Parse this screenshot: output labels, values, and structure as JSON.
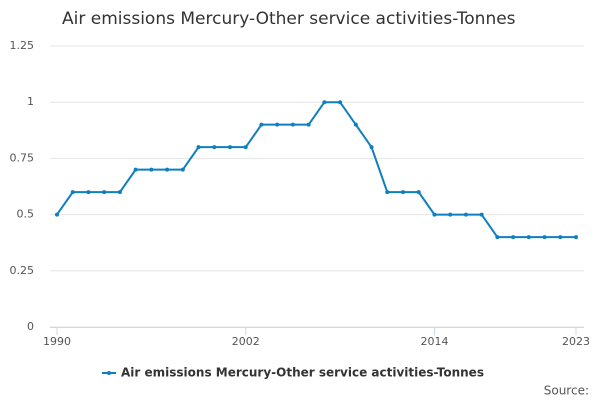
{
  "chart_data": {
    "type": "line",
    "title": "Air emissions Mercury-Other service activities-Tonnes",
    "x": [
      1990,
      1991,
      1992,
      1993,
      1994,
      1995,
      1996,
      1997,
      1998,
      1999,
      2000,
      2001,
      2002,
      2003,
      2004,
      2005,
      2006,
      2007,
      2008,
      2009,
      2010,
      2011,
      2012,
      2013,
      2014,
      2015,
      2016,
      2017,
      2018,
      2019,
      2020,
      2021,
      2022,
      2023
    ],
    "series": [
      {
        "name": "Air emissions Mercury-Other service activities-Tonnes",
        "color": "#0f7fbf",
        "values": [
          0.5,
          0.6,
          0.6,
          0.6,
          0.6,
          0.7,
          0.7,
          0.7,
          0.7,
          0.8,
          0.8,
          0.8,
          0.8,
          0.9,
          0.9,
          0.9,
          0.9,
          1,
          1,
          0.9,
          0.8,
          0.6,
          0.6,
          0.6,
          0.5,
          0.5,
          0.5,
          0.5,
          0.4,
          0.4,
          0.4,
          0.4,
          0.4,
          0.4
        ]
      }
    ],
    "xlim": [
      1990,
      2023
    ],
    "xticks": [
      1990,
      2002,
      2014,
      2023
    ],
    "ylim": [
      0,
      1.25
    ],
    "yticks": [
      0,
      0.25,
      0.5,
      0.75,
      1,
      1.25
    ],
    "grid": true,
    "source": "Source:"
  }
}
